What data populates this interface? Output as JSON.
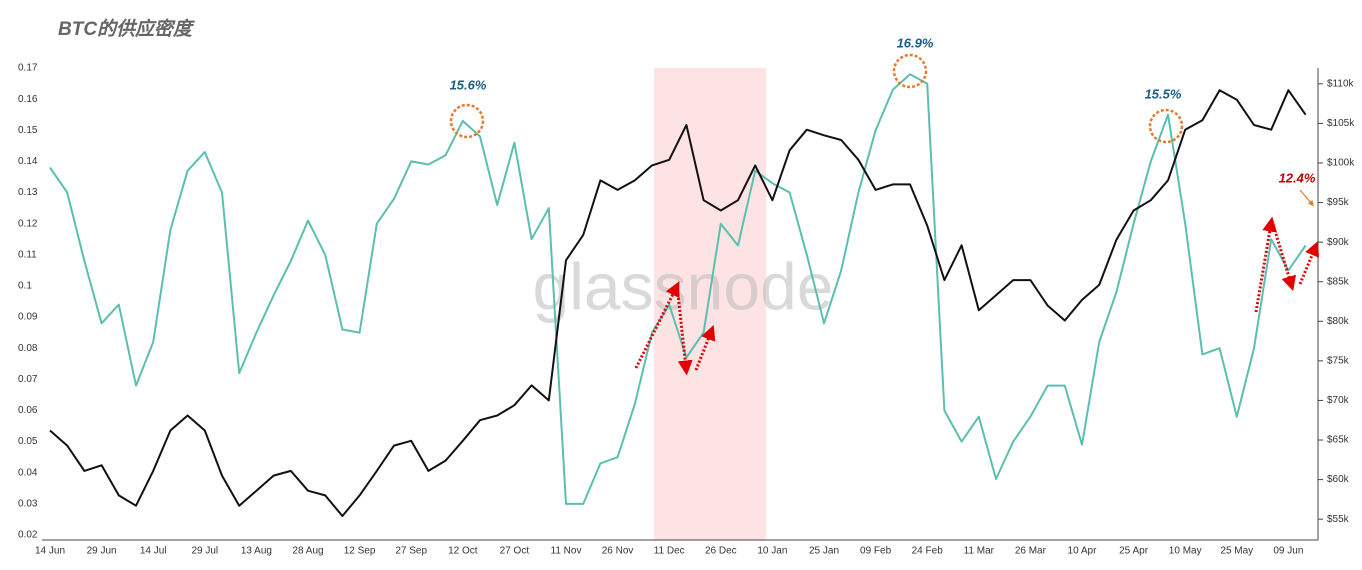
{
  "chart_data": {
    "type": "line",
    "title": "BTC的供应密度",
    "watermark": "glassnode",
    "categories": [
      "14 Jun",
      null,
      null,
      "29 Jun",
      null,
      null,
      "14 Jul",
      null,
      null,
      "29 Jul",
      null,
      null,
      "13 Aug",
      null,
      null,
      "28 Aug",
      null,
      null,
      "12 Sep",
      null,
      null,
      "27 Sep",
      null,
      null,
      "12 Oct",
      null,
      null,
      "27 Oct",
      null,
      null,
      "11 Nov",
      null,
      null,
      "26 Nov",
      null,
      null,
      "11 Dec",
      null,
      null,
      "26 Dec",
      null,
      null,
      "10 Jan",
      null,
      null,
      "25 Jan",
      null,
      null,
      "09 Feb",
      null,
      null,
      "24 Feb",
      null,
      null,
      "11 Mar",
      null,
      null,
      "26 Mar",
      null,
      null,
      "10 Apr",
      null,
      null,
      "25 Apr",
      null,
      null,
      "10 May",
      null,
      null,
      "25 May",
      null,
      null,
      "09 Jun",
      null
    ],
    "series": [
      {
        "color": "#5bbfb0",
        "values": [
          0.138,
          0.13,
          0.108,
          0.088,
          0.094,
          0.068,
          0.082,
          0.118,
          0.137,
          0.143,
          0.13,
          0.072,
          0.085,
          0.097,
          0.108,
          0.121,
          0.11,
          0.086,
          0.085,
          0.12,
          0.128,
          0.14,
          0.139,
          0.142,
          0.153,
          0.148,
          0.126,
          0.146,
          0.115,
          0.125,
          0.03,
          0.03,
          0.043,
          0.045,
          0.062,
          0.085,
          0.094,
          0.077,
          0.085,
          0.12,
          0.113,
          0.137,
          0.133,
          0.13,
          0.11,
          0.088,
          0.105,
          0.13,
          0.15,
          0.163,
          0.168,
          0.165,
          0.06,
          0.05,
          0.058,
          0.038,
          0.05,
          0.058,
          0.068,
          0.068,
          0.049,
          0.082,
          0.098,
          0.12,
          0.14,
          0.155,
          0.12,
          0.078,
          0.08,
          0.058,
          0.08,
          0.115,
          0.105,
          0.113
        ]
      },
      {
        "color": "#111111",
        "axis": "y2",
        "values": [
          66200,
          64300,
          61100,
          61800,
          58000,
          56700,
          61100,
          66200,
          68100,
          66200,
          60500,
          56700,
          58600,
          60500,
          61100,
          58600,
          58000,
          55400,
          58000,
          61100,
          64300,
          64900,
          61100,
          62400,
          64900,
          67500,
          68100,
          69400,
          71900,
          70000,
          87700,
          90900,
          97800,
          96600,
          97800,
          99700,
          100400,
          104800,
          95300,
          94000,
          95300,
          99700,
          95300,
          101600,
          104200,
          103500,
          102900,
          100400,
          96600,
          97300,
          97300,
          92100,
          85200,
          89600,
          81400,
          83300,
          85200,
          85200,
          82000,
          80100,
          82700,
          84600,
          90300,
          94000,
          95300,
          97800,
          104200,
          105400,
          109200,
          108000,
          104800,
          104200,
          109200,
          106100
        ]
      }
    ],
    "ylim": [
      0.02,
      0.17
    ],
    "yticks": [
      0.02,
      0.03,
      0.04,
      0.05,
      0.06,
      0.07,
      0.08,
      0.09,
      0.1,
      0.11,
      0.12,
      0.13,
      0.14,
      0.15,
      0.16,
      0.17
    ],
    "y2lim": [
      53000,
      112000
    ],
    "y2ticks": [
      {
        "value": 55000,
        "label": "$55k"
      },
      {
        "value": 60000,
        "label": "$60k"
      },
      {
        "value": 65000,
        "label": "$65k"
      },
      {
        "value": 70000,
        "label": "$70k"
      },
      {
        "value": 75000,
        "label": "$75k"
      },
      {
        "value": 80000,
        "label": "$80k"
      },
      {
        "value": 85000,
        "label": "$85k"
      },
      {
        "value": 90000,
        "label": "$90k"
      },
      {
        "value": 95000,
        "label": "$95k"
      },
      {
        "value": 100000,
        "label": "$100k"
      },
      {
        "value": 105000,
        "label": "$105k"
      },
      {
        "value": 110000,
        "label": "$110k"
      }
    ],
    "annotations": [
      "15.6%",
      "16.9%",
      "15.5%",
      "12.4%"
    ]
  }
}
